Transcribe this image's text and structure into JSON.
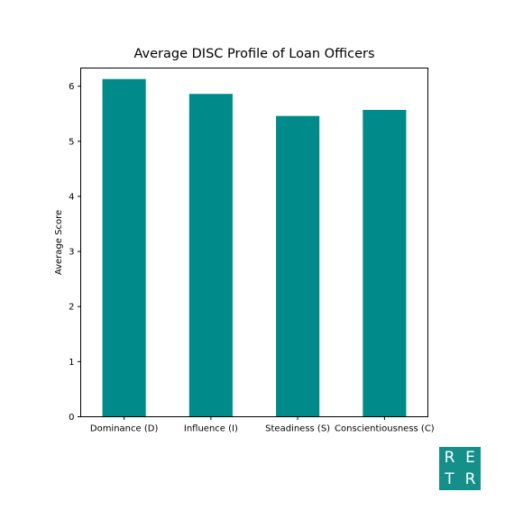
{
  "chart_data": {
    "type": "bar",
    "title": "Average DISC Profile of Loan Officers",
    "xlabel": "",
    "ylabel": "Average Score",
    "categories": [
      "Dominance (D)",
      "Influence (I)",
      "Steadiness (S)",
      "Conscientiousness (C)"
    ],
    "values": [
      6.13,
      5.86,
      5.46,
      5.57
    ],
    "ylim": [
      0,
      6.33
    ],
    "yticks": [
      0,
      1,
      2,
      3,
      4,
      5,
      6
    ],
    "bar_color": "#008b8b",
    "grid": false
  },
  "logo": {
    "letters": [
      "R",
      "E",
      "T",
      "R"
    ],
    "color": "#148f8a"
  }
}
